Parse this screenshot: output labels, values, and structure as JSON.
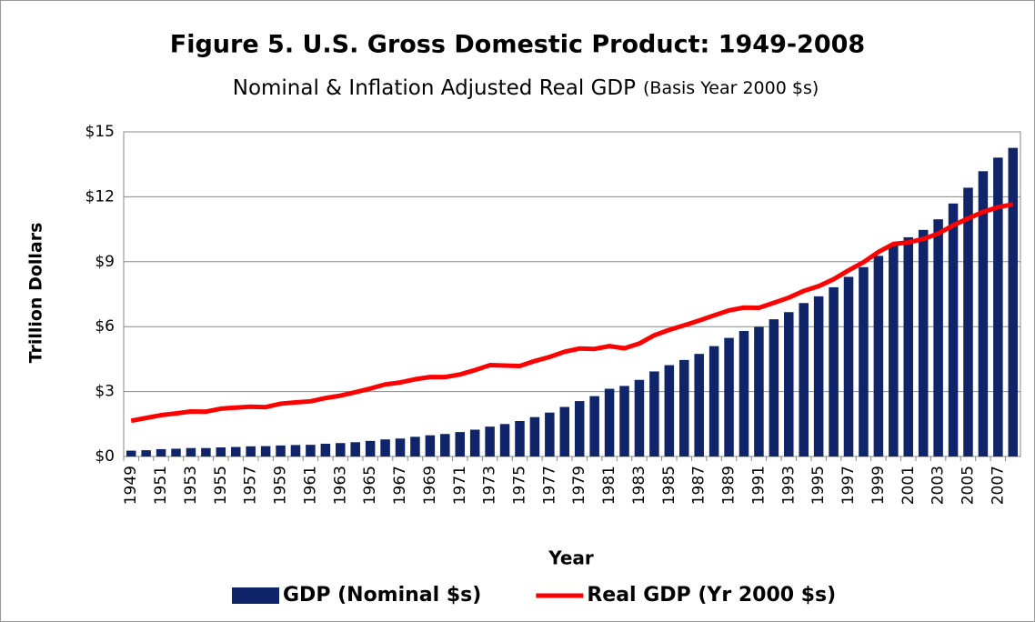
{
  "chart_data": {
    "type": "bar_line",
    "title": "Figure 5. U.S. Gross Domestic Product: 1949-2008",
    "subtitle": "Nominal & Inflation Adjusted Real GDP",
    "subtitle_note": "(Basis Year 2000 $s)",
    "x_label": "Year",
    "y_label": "Trillion Dollars",
    "categories": [
      "1949",
      null,
      "1951",
      null,
      "1953",
      null,
      "1955",
      null,
      "1957",
      null,
      "1959",
      null,
      "1961",
      null,
      "1963",
      null,
      "1965",
      null,
      "1967",
      null,
      "1969",
      null,
      "1971",
      null,
      "1973",
      null,
      "1975",
      null,
      "1977",
      null,
      "1979",
      null,
      "1981",
      null,
      "1983",
      null,
      "1985",
      null,
      "1987",
      null,
      "1989",
      null,
      "1991",
      null,
      "1993",
      null,
      "1995",
      null,
      "1997",
      null,
      "1999",
      null,
      "2001",
      null,
      "2003",
      null,
      "2005",
      null,
      "2007",
      null
    ],
    "series": [
      {
        "name": "GDP (Nominal $s)",
        "kind": "bar",
        "color": "#0f2469",
        "values": [
          0.27,
          0.29,
          0.34,
          0.36,
          0.39,
          0.39,
          0.42,
          0.44,
          0.47,
          0.48,
          0.51,
          0.53,
          0.54,
          0.59,
          0.62,
          0.66,
          0.72,
          0.79,
          0.83,
          0.91,
          0.98,
          1.04,
          1.13,
          1.24,
          1.38,
          1.5,
          1.64,
          1.82,
          2.03,
          2.29,
          2.56,
          2.79,
          3.13,
          3.26,
          3.54,
          3.93,
          4.22,
          4.46,
          4.74,
          5.1,
          5.48,
          5.8,
          5.99,
          6.34,
          6.67,
          7.09,
          7.4,
          7.82,
          8.3,
          8.75,
          9.27,
          9.82,
          10.13,
          10.47,
          10.96,
          11.69,
          12.42,
          13.18,
          13.81,
          14.26
        ]
      },
      {
        "name": "Real GDP (Yr 2000 $s)",
        "kind": "line",
        "color": "#ff0000",
        "values": [
          1.65,
          1.78,
          1.91,
          1.99,
          2.08,
          2.07,
          2.21,
          2.26,
          2.3,
          2.28,
          2.44,
          2.5,
          2.55,
          2.7,
          2.81,
          2.97,
          3.14,
          3.33,
          3.42,
          3.57,
          3.67,
          3.67,
          3.79,
          3.99,
          4.22,
          4.2,
          4.18,
          4.41,
          4.6,
          4.84,
          4.99,
          4.97,
          5.1,
          5.0,
          5.22,
          5.6,
          5.85,
          6.06,
          6.28,
          6.52,
          6.75,
          6.88,
          6.87,
          7.1,
          7.34,
          7.65,
          7.87,
          8.19,
          8.6,
          8.98,
          9.45,
          9.82,
          9.89,
          10.05,
          10.3,
          10.68,
          11.0,
          11.3,
          11.52,
          11.65
        ]
      }
    ],
    "ylim": [
      0,
      15
    ],
    "yticks": [
      {
        "value": 0,
        "label": "$0"
      },
      {
        "value": 3,
        "label": "$3"
      },
      {
        "value": 6,
        "label": "$6"
      },
      {
        "value": 9,
        "label": "$9"
      },
      {
        "value": 12,
        "label": "$12"
      },
      {
        "value": 15,
        "label": "$15"
      }
    ],
    "grid": true,
    "legend": "bottom"
  }
}
